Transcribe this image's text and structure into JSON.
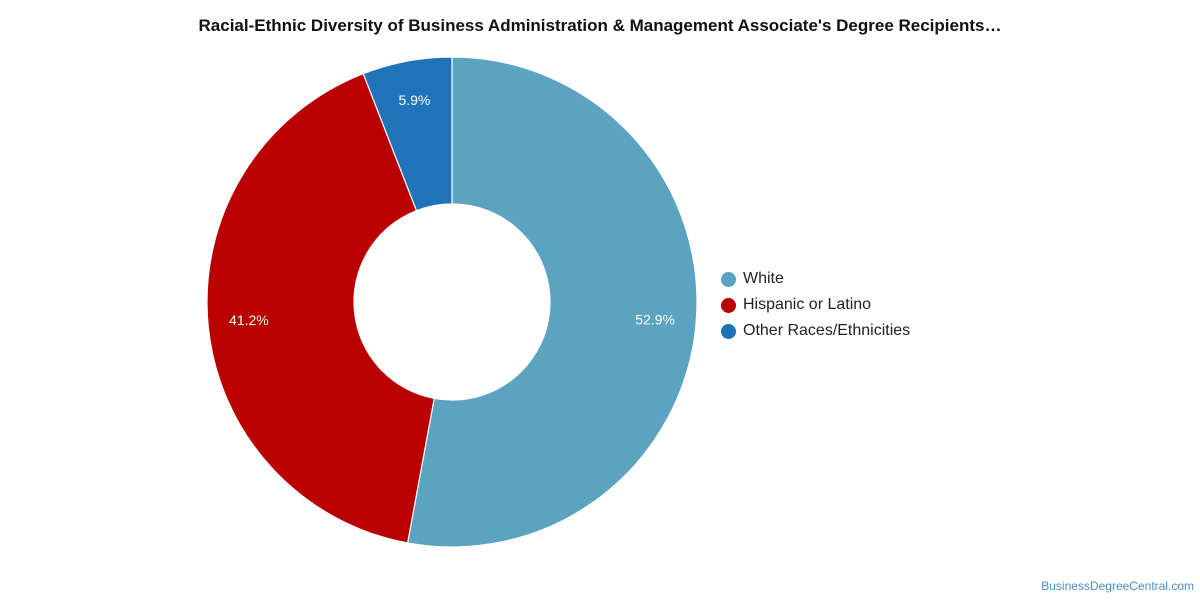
{
  "title": "Racial-Ethnic Diversity of Business Administration & Management Associate's Degree Recipients…",
  "watermark": "BusinessDegreeCentral.com",
  "chart_data": {
    "type": "pie",
    "donut": true,
    "start": "top",
    "direction": "clockwise",
    "slices": [
      {
        "label": "White",
        "value": 52.9,
        "display": "52.9%",
        "color": "#5ba3c0"
      },
      {
        "label": "Hispanic or Latino",
        "value": 41.2,
        "display": "41.2%",
        "color": "#bb0000"
      },
      {
        "label": "Other Races/Ethnicities",
        "value": 5.9,
        "display": "5.9%",
        "color": "#1e73b9"
      }
    ],
    "legend_position": "right"
  }
}
